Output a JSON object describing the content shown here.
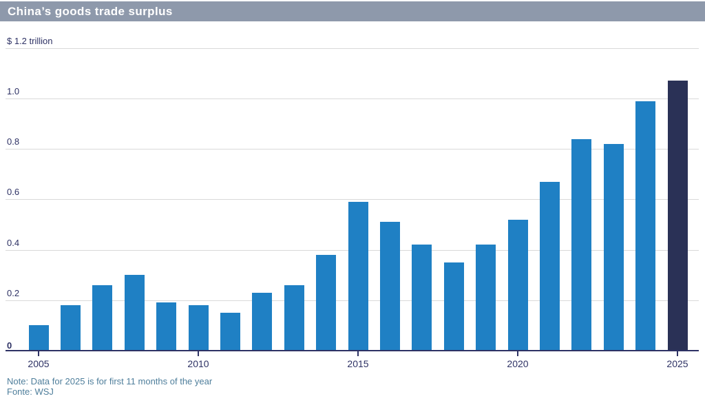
{
  "header": {
    "title": "China’s goods trade surplus"
  },
  "colors": {
    "background": "#ffffff",
    "title_bar_bg": "#8e99ab",
    "title_text": "#ffffff",
    "bar_blue": "#1f80c4",
    "bar_highlight_navy": "#2a3156",
    "axis_text": "#2d3164",
    "grid_line": "#d9d9d9",
    "footer_text": "#4e7e9b"
  },
  "chart_data": {
    "type": "bar",
    "title": "China’s goods trade surplus",
    "xlabel": "",
    "ylabel": "$ trillion",
    "ylim": [
      0,
      1.2
    ],
    "grid": true,
    "legend": "none",
    "categories": [
      "2005",
      "2006",
      "2007",
      "2008",
      "2009",
      "2010",
      "2011",
      "2012",
      "2013",
      "2014",
      "2015",
      "2016",
      "2017",
      "2018",
      "2019",
      "2020",
      "2021",
      "2022",
      "2023",
      "2024",
      "2025"
    ],
    "values": [
      0.1,
      0.18,
      0.26,
      0.3,
      0.19,
      0.18,
      0.15,
      0.23,
      0.26,
      0.38,
      0.59,
      0.51,
      0.42,
      0.35,
      0.42,
      0.52,
      0.67,
      0.84,
      0.82,
      0.99,
      1.07
    ],
    "highlight_category": "2025",
    "y_ticks": [
      0,
      0.2,
      0.4,
      0.6,
      0.8,
      1.0,
      1.2
    ],
    "y_tick_labels": [
      "0",
      "0.2",
      "0.4",
      "0.6",
      "0.8",
      "1.0",
      "$ 1.2 trillion"
    ],
    "x_tick_labels": [
      "2005",
      "2010",
      "2015",
      "2020",
      "2025"
    ]
  },
  "footer": {
    "note": "Note: Data for 2025 is for first 11 months of the year",
    "source": "Fonte: WSJ"
  }
}
